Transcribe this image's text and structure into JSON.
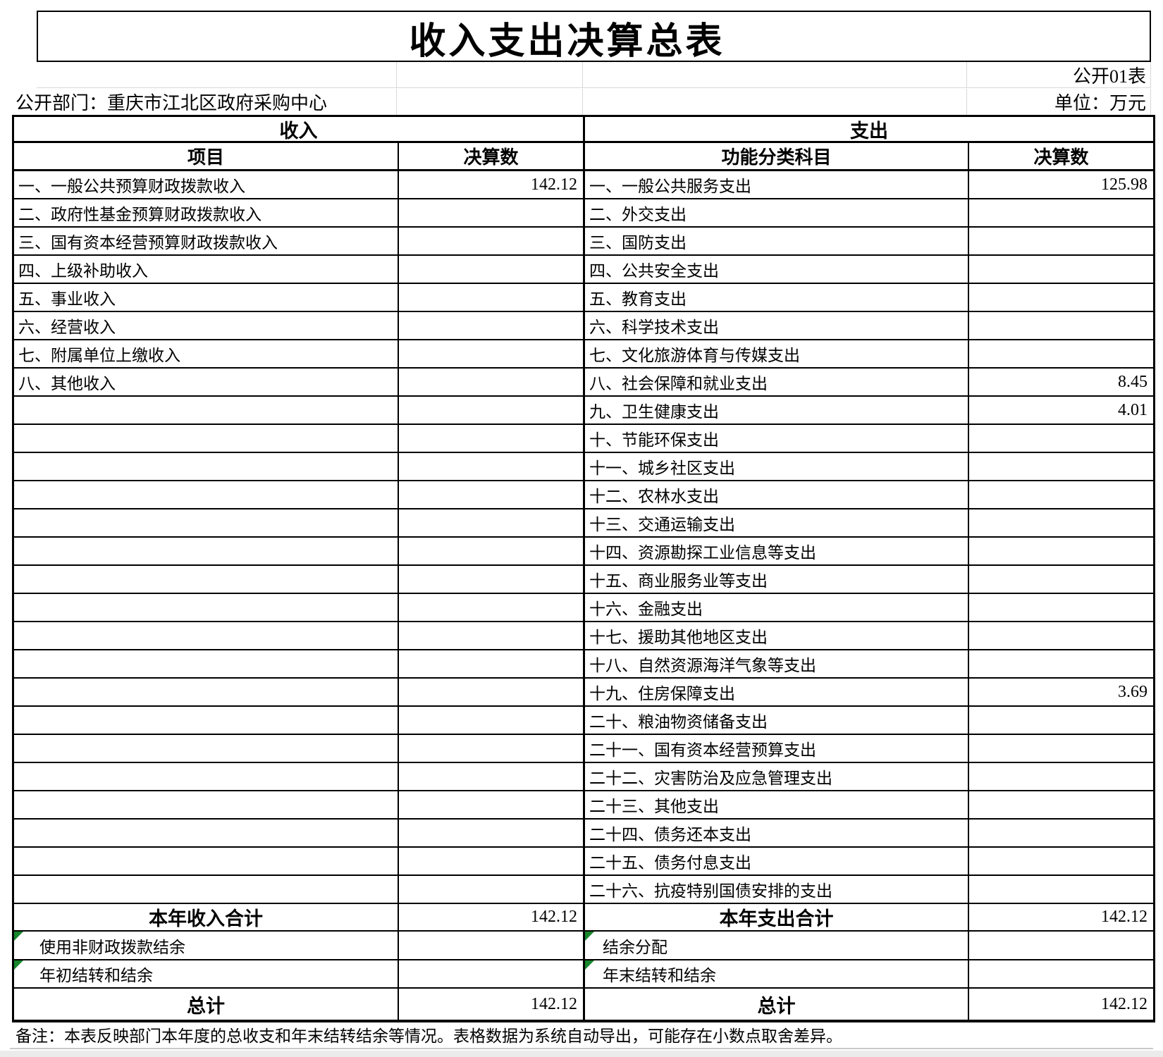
{
  "page": {
    "title": "收入支出决算总表",
    "table_code": "公开01表",
    "department": "公开部门：重庆市江北区政府采购中心",
    "unit": "单位：万元",
    "footnote": "备注：本表反映部门本年度的总收支和年末结转结余等情况。表格数据为系统自动导出，可能存在小数点取舍差异。"
  },
  "colors": {
    "border": "#000000",
    "faint_grid": "#d8d8d8",
    "green_flag": "#17862c",
    "bottom_strip": "#ebebeb"
  },
  "table": {
    "income_section_title": "收入",
    "expense_section_title": "支出",
    "income_columns": [
      "项目",
      "决算数"
    ],
    "expense_columns": [
      "功能分类科目",
      "决算数"
    ],
    "rows": [
      {
        "income_label": "一、一般公共预算财政拨款收入",
        "income_value": "142.12",
        "expense_label": "一、一般公共服务支出",
        "expense_value": "125.98"
      },
      {
        "income_label": "二、政府性基金预算财政拨款收入",
        "income_value": "",
        "expense_label": "二、外交支出",
        "expense_value": ""
      },
      {
        "income_label": "三、国有资本经营预算财政拨款收入",
        "income_value": "",
        "expense_label": "三、国防支出",
        "expense_value": ""
      },
      {
        "income_label": "四、上级补助收入",
        "income_value": "",
        "expense_label": "四、公共安全支出",
        "expense_value": ""
      },
      {
        "income_label": "五、事业收入",
        "income_value": "",
        "expense_label": "五、教育支出",
        "expense_value": ""
      },
      {
        "income_label": "六、经营收入",
        "income_value": "",
        "expense_label": "六、科学技术支出",
        "expense_value": ""
      },
      {
        "income_label": "七、附属单位上缴收入",
        "income_value": "",
        "expense_label": "七、文化旅游体育与传媒支出",
        "expense_value": ""
      },
      {
        "income_label": "八、其他收入",
        "income_value": "",
        "expense_label": "八、社会保障和就业支出",
        "expense_value": "8.45"
      },
      {
        "income_label": "",
        "income_value": "",
        "expense_label": "九、卫生健康支出",
        "expense_value": "4.01"
      },
      {
        "income_label": "",
        "income_value": "",
        "expense_label": "十、节能环保支出",
        "expense_value": ""
      },
      {
        "income_label": "",
        "income_value": "",
        "expense_label": "十一、城乡社区支出",
        "expense_value": ""
      },
      {
        "income_label": "",
        "income_value": "",
        "expense_label": "十二、农林水支出",
        "expense_value": ""
      },
      {
        "income_label": "",
        "income_value": "",
        "expense_label": "十三、交通运输支出",
        "expense_value": ""
      },
      {
        "income_label": "",
        "income_value": "",
        "expense_label": "十四、资源勘探工业信息等支出",
        "expense_value": ""
      },
      {
        "income_label": "",
        "income_value": "",
        "expense_label": "十五、商业服务业等支出",
        "expense_value": ""
      },
      {
        "income_label": "",
        "income_value": "",
        "expense_label": "十六、金融支出",
        "expense_value": ""
      },
      {
        "income_label": "",
        "income_value": "",
        "expense_label": "十七、援助其他地区支出",
        "expense_value": ""
      },
      {
        "income_label": "",
        "income_value": "",
        "expense_label": "十八、自然资源海洋气象等支出",
        "expense_value": ""
      },
      {
        "income_label": "",
        "income_value": "",
        "expense_label": "十九、住房保障支出",
        "expense_value": "3.69"
      },
      {
        "income_label": "",
        "income_value": "",
        "expense_label": "二十、粮油物资储备支出",
        "expense_value": ""
      },
      {
        "income_label": "",
        "income_value": "",
        "expense_label": "二十一、国有资本经营预算支出",
        "expense_value": ""
      },
      {
        "income_label": "",
        "income_value": "",
        "expense_label": "二十二、灾害防治及应急管理支出",
        "expense_value": ""
      },
      {
        "income_label": "",
        "income_value": "",
        "expense_label": "二十三、其他支出",
        "expense_value": ""
      },
      {
        "income_label": "",
        "income_value": "",
        "expense_label": "二十四、债务还本支出",
        "expense_value": ""
      },
      {
        "income_label": "",
        "income_value": "",
        "expense_label": "二十五、债务付息支出",
        "expense_value": ""
      },
      {
        "income_label": "",
        "income_value": "",
        "expense_label": "二十六、抗疫特别国债安排的支出",
        "expense_value": ""
      }
    ],
    "summary_rows": [
      {
        "income_label": "本年收入合计",
        "income_value": "142.12",
        "expense_label": "本年支出合计",
        "expense_value": "142.12",
        "bold": true,
        "flag": false
      },
      {
        "income_label": "使用非财政拨款结余",
        "income_value": "",
        "expense_label": "结余分配",
        "expense_value": "",
        "bold": false,
        "flag": true
      },
      {
        "income_label": "年初结转和结余",
        "income_value": "",
        "expense_label": "年末结转和结余",
        "expense_value": "",
        "bold": false,
        "flag": true
      },
      {
        "income_label": "总计",
        "income_value": "142.12",
        "expense_label": "总计",
        "expense_value": "142.12",
        "bold": true,
        "flag": false
      }
    ]
  }
}
